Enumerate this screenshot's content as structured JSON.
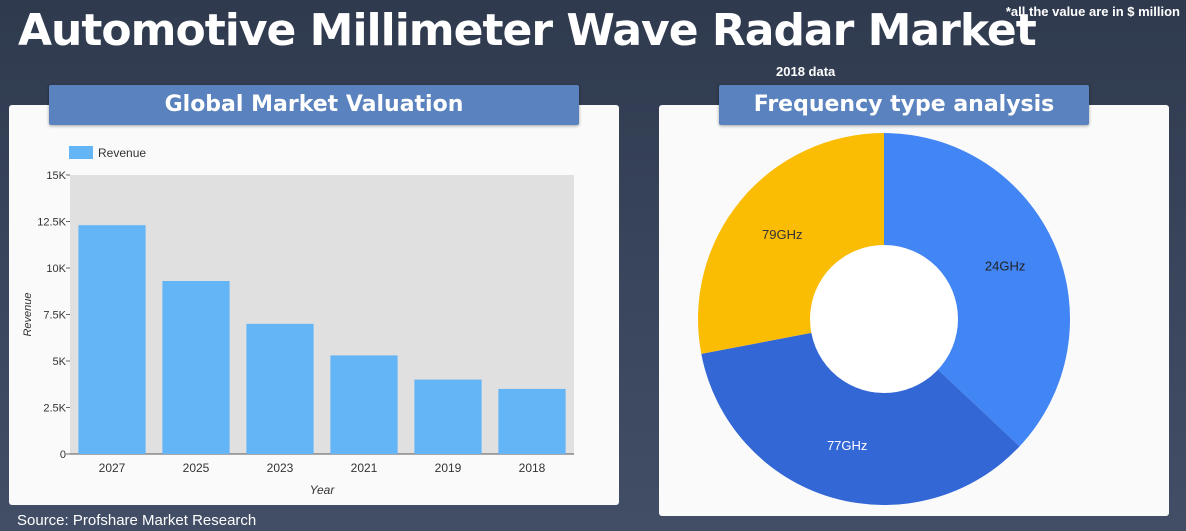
{
  "header": {
    "title": "Automotive Millimeter Wave Radar Market",
    "note": "*all the value are in $ million",
    "subnote": "2018 data"
  },
  "footer": {
    "source": "Source: Profshare Market Research"
  },
  "colors": {
    "bar": "#64b5f6",
    "plot_bg": "#e0e0e0",
    "banner": "#5a82be",
    "slice_24": "#4285f4",
    "slice_77": "#3367d6",
    "slice_79": "#fbbc04"
  },
  "chart_data": [
    {
      "type": "bar",
      "title": "Global Market Valuation",
      "categories": [
        "2027",
        "2025",
        "2023",
        "2021",
        "2019",
        "2018"
      ],
      "series": [
        {
          "name": "Revenue",
          "values": [
            12300,
            9300,
            7000,
            5300,
            4000,
            3500
          ]
        }
      ],
      "xlabel": "Year",
      "ylabel": "Revenue",
      "ylim": [
        0,
        15000
      ],
      "yticks": [
        0,
        2500,
        5000,
        7500,
        10000,
        12500,
        15000
      ],
      "ytick_labels": [
        "0",
        "2.5K",
        "5K",
        "7.5K",
        "10K",
        "12.5K",
        "15K"
      ],
      "legend": "top-left",
      "grid": false
    },
    {
      "type": "pie",
      "title": "Frequency type analysis",
      "donut": true,
      "labels": [
        "24GHz",
        "77GHz",
        "79GHz"
      ],
      "values": [
        37,
        35,
        28
      ]
    }
  ]
}
